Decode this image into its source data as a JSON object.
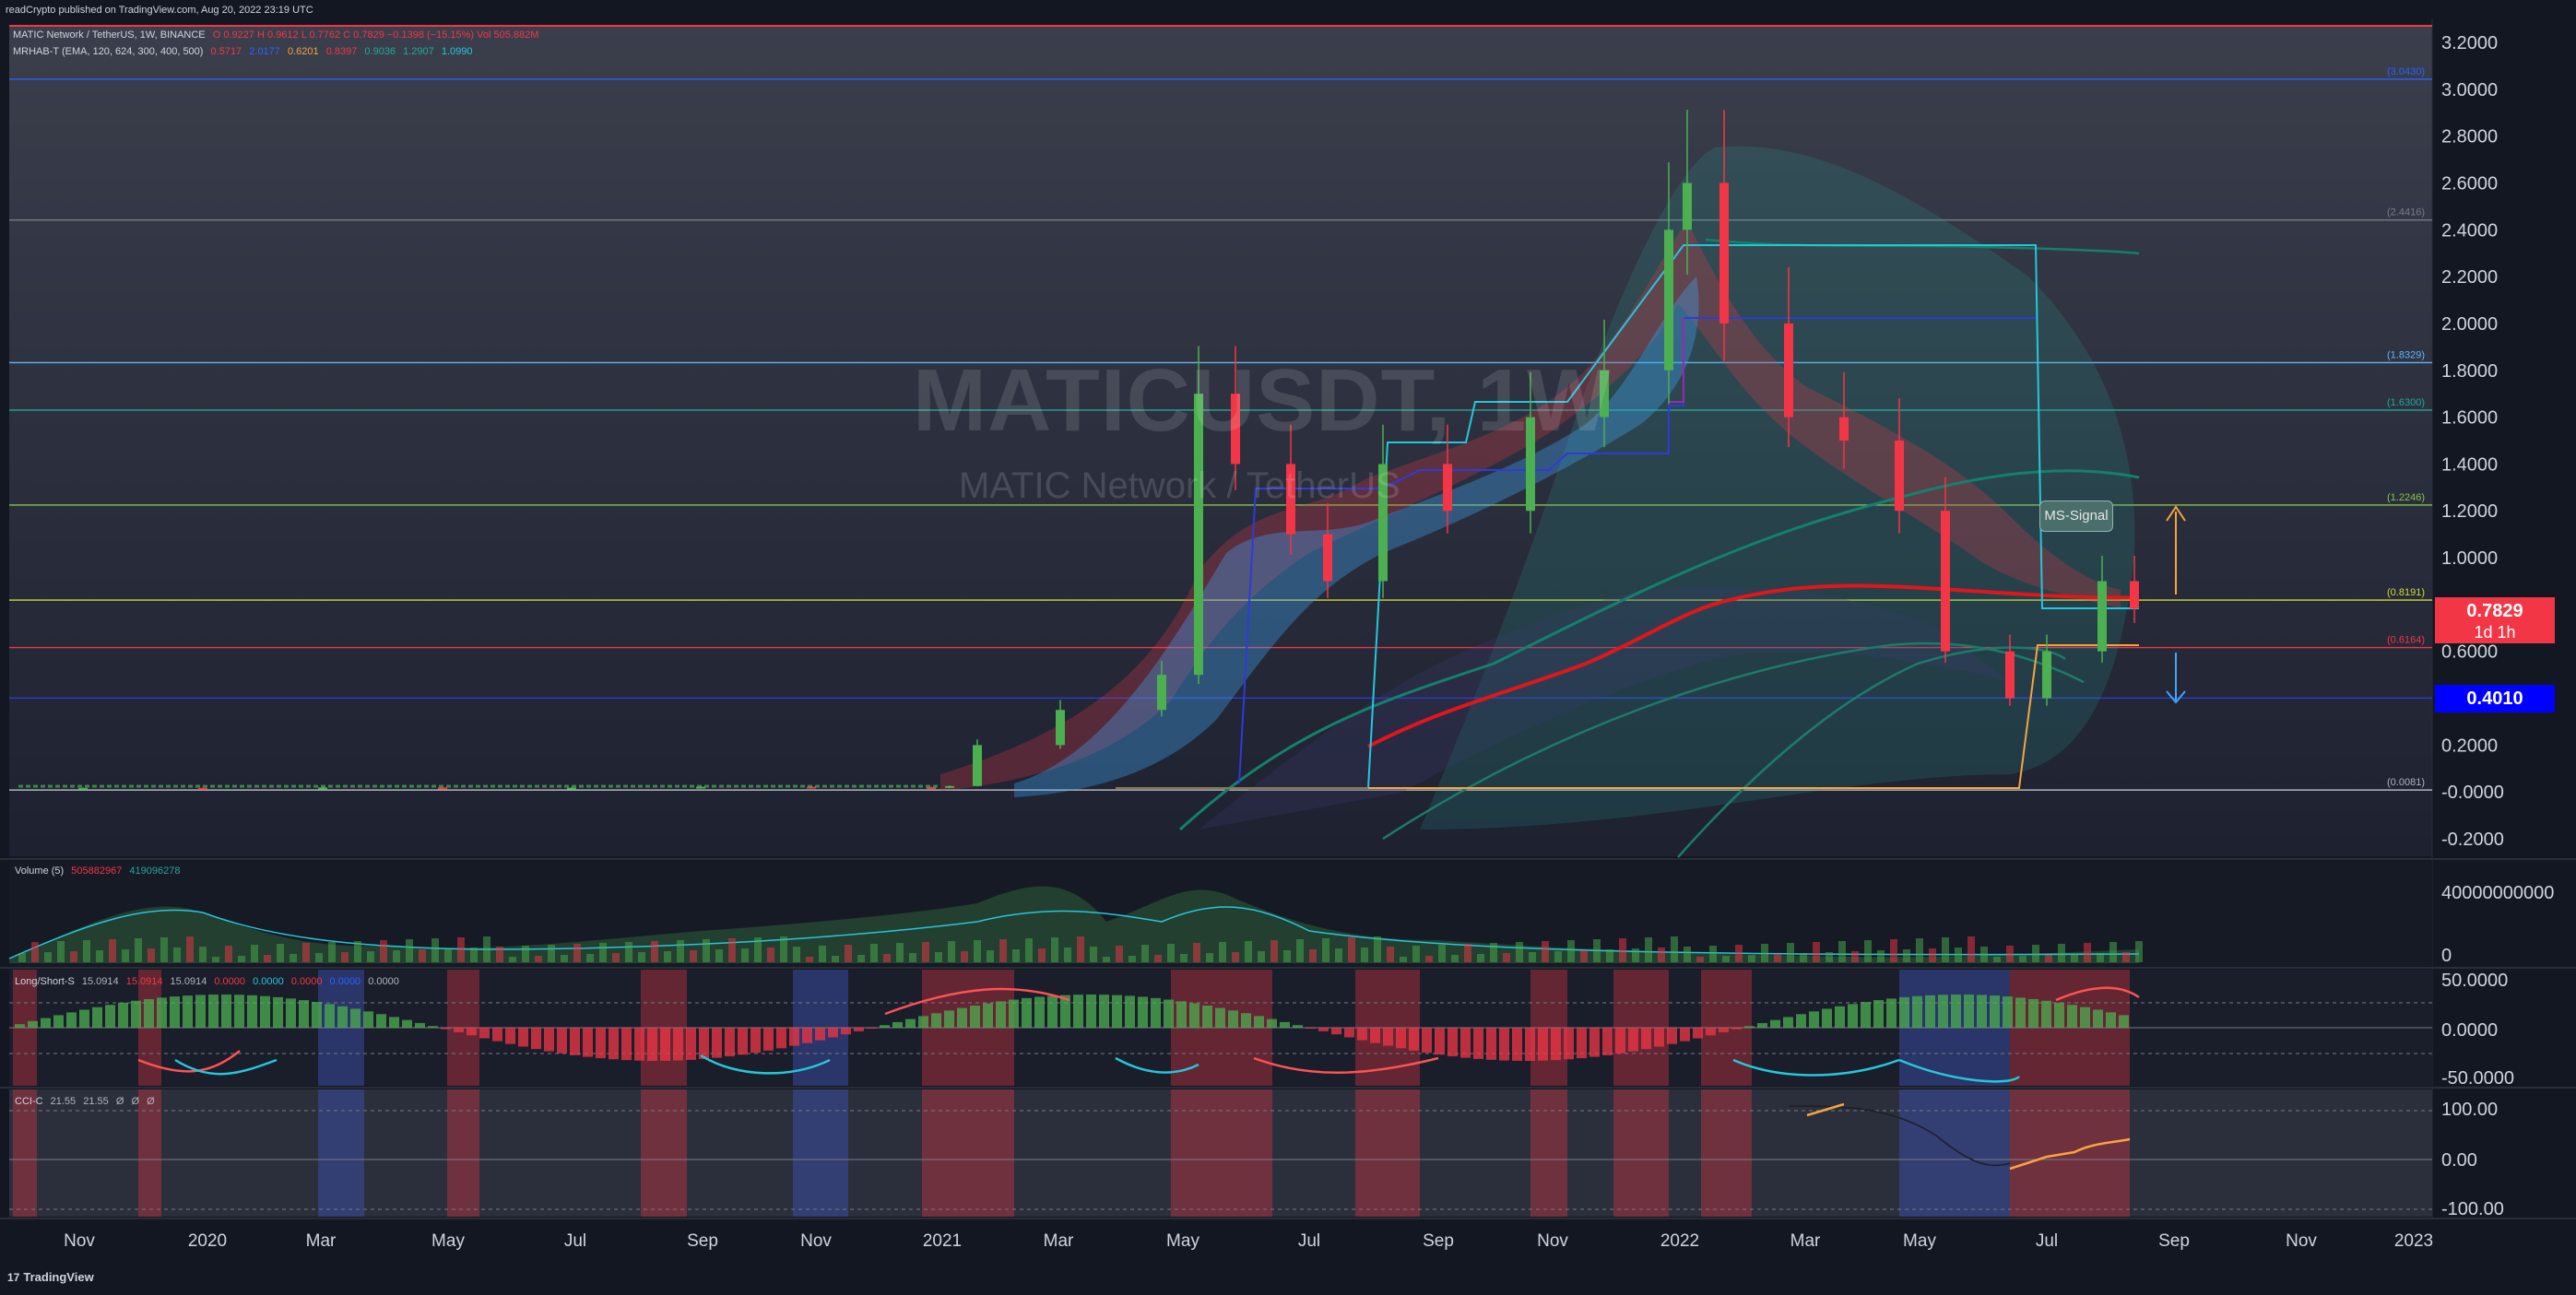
{
  "published": "readCrypto published on TradingView.com, Aug 20, 2022 23:19 UTC",
  "watermark": {
    "symbol": "MATICUSDT, 1W",
    "name": "MATIC Network / TetherUS"
  },
  "legend": {
    "main": "MATIC Network / TetherUS, 1W, BINANCE",
    "main_values": "O 0.9227 H 0.9612 L 0.7762 C 0.7829 −0.1398 (−15.15%) Vol 505.882M",
    "indicator": "MRHAB-T (EMA, 120, 624, 300, 400, 500)",
    "indicator_values": [
      "0.5717",
      "2.0177",
      "0.6201",
      "0.8397",
      "0.9036",
      "1.2907",
      "1.0990"
    ]
  },
  "volume_legend": {
    "label": "Volume (5)",
    "value": "505882967",
    "value2": "419096278"
  },
  "ls_legend": {
    "label": "Long/Short-S",
    "values": [
      "15.0914",
      "15.0914",
      "15.0914",
      "0.0000",
      "0.0000",
      "0.0000",
      "0.0000",
      "0.0000"
    ]
  },
  "cci_legend": {
    "label": "CCI-C",
    "values": [
      "21.55",
      "21.55",
      "Ø",
      "Ø",
      "Ø"
    ]
  },
  "price_tag": {
    "price": "0.7829",
    "countdown": "1d 1h"
  },
  "level_tag": "0.4010",
  "signal_label": "MS-Signal",
  "footer": {
    "logo": "17",
    "brand": "TradingView"
  },
  "colors": {
    "background": "#131722",
    "up": "#4caf50",
    "down": "#f23645",
    "ema_red": "#e0161b",
    "cyan": "#26c6da",
    "teal": "#14806e",
    "blue": "#2e3bd6",
    "orange": "#f7a440"
  },
  "chart_data": [
    {
      "type": "line",
      "title": "MATICUSDT, 1W",
      "xlabel": "",
      "ylabel": "",
      "x_ticks": [
        "Nov",
        "2020",
        "Mar",
        "May",
        "Jul",
        "Sep",
        "Nov",
        "2021",
        "Mar",
        "May",
        "Jul",
        "Sep",
        "Nov",
        "2022",
        "Mar",
        "May",
        "Jul",
        "Sep",
        "Nov",
        "2023"
      ],
      "y_ticks": [
        "3.2000",
        "3.0000",
        "2.8000",
        "2.6000",
        "2.4000",
        "2.2000",
        "2.0000",
        "1.8000",
        "1.6000",
        "1.4000",
        "1.2000",
        "1.0000",
        "0.8000",
        "0.6000",
        "0.4000",
        "0.2000",
        "-0.0000",
        "-0.2000"
      ],
      "ylim": [
        -0.3,
        3.3
      ],
      "levels": [
        {
          "label": "(3.0430)",
          "value": 3.043,
          "color": "#2962ff"
        },
        {
          "label": "(2.4416)",
          "value": 2.4416,
          "color": "#787b86"
        },
        {
          "label": "(1.8329)",
          "value": 1.8329,
          "color": "#64b5f6"
        },
        {
          "label": "(1.6300)",
          "value": 1.63,
          "color": "#26a69a"
        },
        {
          "label": "(1.2246)",
          "value": 1.2246,
          "color": "#8bc34a"
        },
        {
          "label": "(0.8191)",
          "value": 0.8191,
          "color": "#cddc39"
        },
        {
          "label": "(0.6164)",
          "value": 0.6164,
          "color": "#f23645"
        },
        {
          "label": "(0.0081)",
          "value": 0.0081,
          "color": "#b2b5be"
        }
      ],
      "blue_level": 0.401,
      "series": [
        {
          "name": "close",
          "x": [
            "2019-10",
            "2019-12",
            "2020-02",
            "2020-04",
            "2020-06",
            "2020-08",
            "2020-10",
            "2020-12",
            "2021-01",
            "2021-02",
            "2021-03",
            "2021-04",
            "2021-05-01",
            "2021-05-15",
            "2021-06",
            "2021-07",
            "2021-08",
            "2021-09",
            "2021-10",
            "2021-11",
            "2021-12-10",
            "2021-12-27",
            "2022-01",
            "2022-02",
            "2022-03",
            "2022-04",
            "2022-05",
            "2022-06",
            "2022-07",
            "2022-08-01",
            "2022-08-15"
          ],
          "values": [
            0.017,
            0.016,
            0.019,
            0.011,
            0.018,
            0.022,
            0.02,
            0.018,
            0.025,
            0.2,
            0.35,
            0.5,
            1.7,
            1.4,
            1.1,
            0.9,
            1.4,
            1.2,
            1.6,
            1.8,
            2.4,
            2.6,
            2.0,
            1.6,
            1.5,
            1.2,
            0.6,
            0.4,
            0.6,
            0.9,
            0.7829
          ]
        }
      ]
    },
    {
      "type": "bar",
      "title": "Volume (5)",
      "y_ticks": [
        "40000000000",
        "0"
      ]
    },
    {
      "type": "bar",
      "title": "Long/Short-S",
      "y_ticks": [
        "50.0000",
        "0.0000",
        "-50.0000"
      ]
    },
    {
      "type": "line",
      "title": "CCI-C",
      "y_ticks": [
        "100.00",
        "0.00",
        "-100.00"
      ]
    }
  ]
}
